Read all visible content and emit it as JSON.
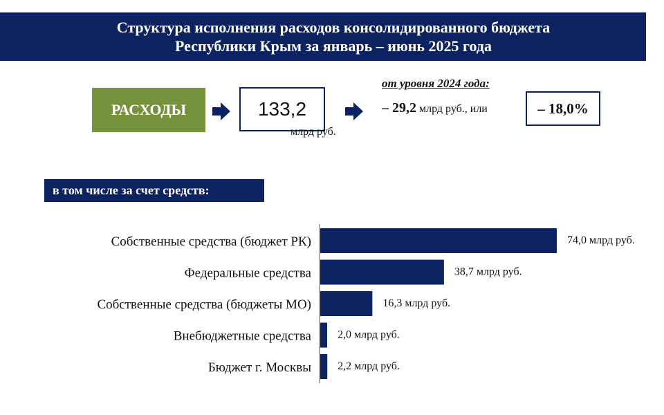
{
  "title": {
    "line1": "Структура исполнения расходов консолидированного бюджета",
    "line2": "Республики Крым  за январь – июнь 2025 года"
  },
  "summary": {
    "label": "РАСХОДЫ",
    "total": "133,2",
    "total_unit": "млрд руб.",
    "comparison_heading": "от уровня 2024 года:",
    "change_value": "– 29,2",
    "change_suffix": "млрд руб., или",
    "change_percent": "– 18,0%"
  },
  "subheading": "в том числе за счет средств:",
  "colors": {
    "primary": "#0d2261",
    "accent": "#76923c"
  },
  "icons": [
    "arrow-right-icon",
    "arrow-right-icon"
  ],
  "chart_data": {
    "type": "bar",
    "orientation": "horizontal",
    "categories": [
      "Собственные  средства (бюджет РК)",
      "Федеральные средства",
      "Собственные  средства (бюджеты МО)",
      "Внебюджетные средства",
      "Бюджет г. Москвы"
    ],
    "values": [
      74.0,
      38.7,
      16.3,
      2.0,
      2.2
    ],
    "value_labels": [
      "74,0 млрд руб.",
      "38,7 млрд руб.",
      "16,3 млрд руб.",
      "2,0 млрд руб.",
      "2,2 млрд руб."
    ],
    "color": "#0d2261",
    "grid": false,
    "legend": "none"
  }
}
